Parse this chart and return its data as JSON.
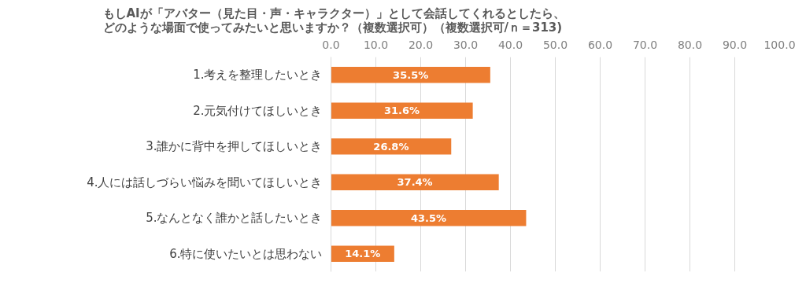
{
  "chart_data": {
    "type": "bar",
    "orientation": "horizontal",
    "title": "もしAIが「アバター（見た目・声・キャラクター）」として会話してくれるとしたら、どのような場面で使ってみたいと思いますか？（複数選択可）（複数選択可/ｎ＝313)",
    "categories": [
      "1.考えを整理したいとき",
      "2.元気付けてほしいとき",
      "3.誰かに背中を押してほしいとき",
      "4.人には話しづらい悩みを聞いてほしいとき",
      "5.なんとなく誰かと話したいとき",
      "6.特に使いたいとは思わない"
    ],
    "values": [
      35.5,
      31.6,
      26.8,
      37.4,
      43.5,
      14.1
    ],
    "value_labels": [
      "35.5%",
      "31.6%",
      "26.8%",
      "37.4%",
      "43.5%",
      "14.1%"
    ],
    "color": "#ed7d31",
    "xlim": [
      0,
      100
    ],
    "xticks": [
      {
        "value": 0,
        "label": "0.0"
      },
      {
        "value": 10,
        "label": "10.0"
      },
      {
        "value": 20,
        "label": "20.0"
      },
      {
        "value": 30,
        "label": "30.0"
      },
      {
        "value": 40,
        "label": "40.0"
      },
      {
        "value": 50,
        "label": "50.0"
      },
      {
        "value": 60,
        "label": "60.0"
      },
      {
        "value": 70,
        "label": "70.0"
      },
      {
        "value": 80,
        "label": "80.0"
      },
      {
        "value": 90,
        "label": "90.0"
      },
      {
        "value": 100,
        "label": "100.0"
      }
    ],
    "grid": "x"
  }
}
